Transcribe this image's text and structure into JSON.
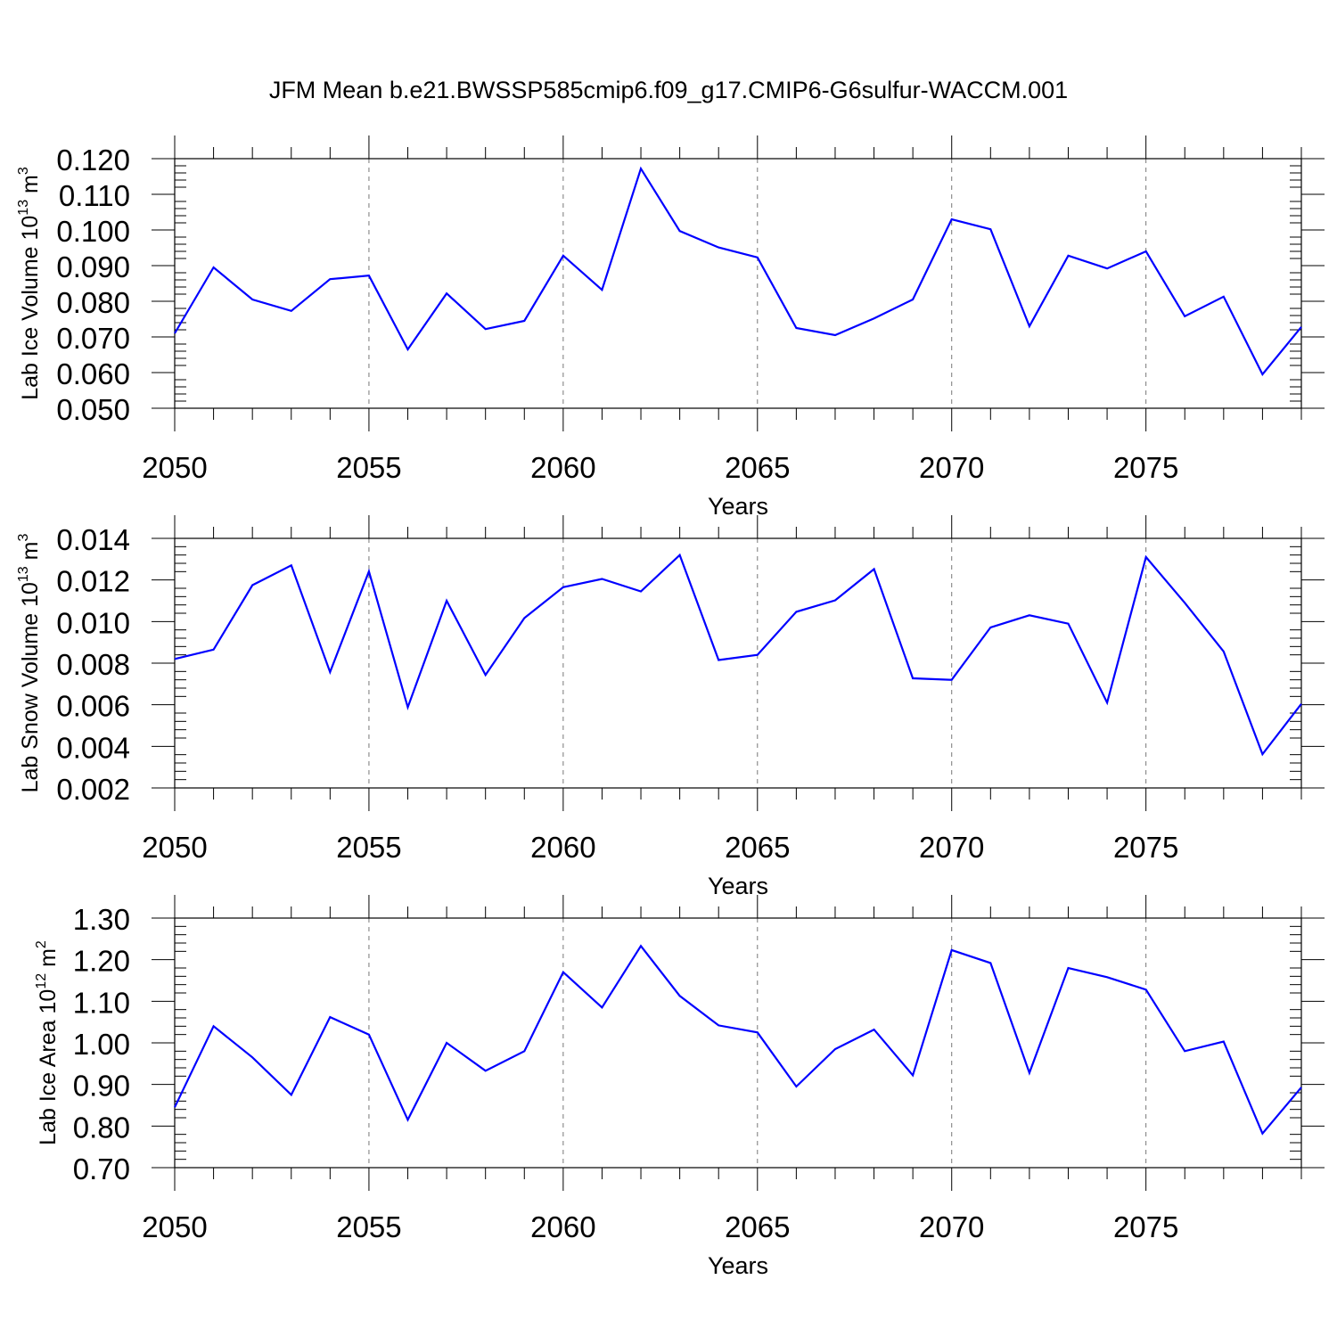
{
  "title": "JFM Mean b.e21.BWSSP585cmip6.f09_g17.CMIP6-G6sulfur-WACCM.001",
  "chart_data": [
    {
      "type": "line",
      "ylabel": "Lab Ice Volume 10",
      "ylabel_exp": "13",
      "ylabel_unit": "m",
      "ylabel_unit_exp": "3",
      "xlabel": "Years",
      "xlim": [
        2050,
        2079
      ],
      "ylim": [
        0.05,
        0.12
      ],
      "yticks": [
        "0.050",
        "0.060",
        "0.070",
        "0.080",
        "0.090",
        "0.100",
        "0.110",
        "0.120"
      ],
      "xticks": [
        "2050",
        "2055",
        "2060",
        "2065",
        "2070",
        "2075"
      ],
      "x": [
        2050,
        2051,
        2052,
        2053,
        2054,
        2055,
        2056,
        2057,
        2058,
        2059,
        2060,
        2061,
        2062,
        2063,
        2064,
        2065,
        2066,
        2067,
        2068,
        2069,
        2070,
        2071,
        2072,
        2073,
        2074,
        2075,
        2076,
        2077,
        2078,
        2079
      ],
      "values": [
        0.071,
        0.0895,
        0.0805,
        0.0773,
        0.0862,
        0.0872,
        0.0665,
        0.0822,
        0.0722,
        0.0745,
        0.0928,
        0.0832,
        0.1172,
        0.0997,
        0.0951,
        0.0923,
        0.0725,
        0.0705,
        0.0752,
        0.0805,
        0.103,
        0.1002,
        0.073,
        0.0928,
        0.0892,
        0.094,
        0.0758,
        0.0813,
        0.0595,
        0.0728
      ],
      "color": "#0000ff",
      "grid": "dashed vertical"
    },
    {
      "type": "line",
      "ylabel": "Lab Snow Volume 10",
      "ylabel_exp": "13",
      "ylabel_unit": "m",
      "ylabel_unit_exp": "3",
      "xlabel": "Years",
      "xlim": [
        2050,
        2079
      ],
      "ylim": [
        0.002,
        0.014
      ],
      "yticks": [
        "0.002",
        "0.004",
        "0.006",
        "0.008",
        "0.010",
        "0.012",
        "0.014"
      ],
      "xticks": [
        "2050",
        "2055",
        "2060",
        "2065",
        "2070",
        "2075"
      ],
      "x": [
        2050,
        2051,
        2052,
        2053,
        2054,
        2055,
        2056,
        2057,
        2058,
        2059,
        2060,
        2061,
        2062,
        2063,
        2064,
        2065,
        2066,
        2067,
        2068,
        2069,
        2070,
        2071,
        2072,
        2073,
        2074,
        2075,
        2076,
        2077,
        2078,
        2079
      ],
      "values": [
        0.0082,
        0.00865,
        0.01175,
        0.0127,
        0.00757,
        0.01241,
        0.00588,
        0.011,
        0.00743,
        0.01017,
        0.01165,
        0.01205,
        0.01145,
        0.0132,
        0.00815,
        0.0084,
        0.01047,
        0.01102,
        0.01252,
        0.00727,
        0.0072,
        0.00972,
        0.0103,
        0.0099,
        0.0061,
        0.0131,
        0.0109,
        0.00856,
        0.00362,
        0.00604
      ],
      "color": "#0000ff",
      "grid": "dashed vertical"
    },
    {
      "type": "line",
      "ylabel": "Lab Ice Area 10",
      "ylabel_exp": "12",
      "ylabel_unit": "m",
      "ylabel_unit_exp": "2",
      "xlabel": "Years",
      "xlim": [
        2050,
        2079
      ],
      "ylim": [
        0.7,
        1.3
      ],
      "yticks": [
        "0.70",
        "0.80",
        "0.90",
        "1.00",
        "1.10",
        "1.20",
        "1.30"
      ],
      "xticks": [
        "2050",
        "2055",
        "2060",
        "2065",
        "2070",
        "2075"
      ],
      "x": [
        2050,
        2051,
        2052,
        2053,
        2054,
        2055,
        2056,
        2057,
        2058,
        2059,
        2060,
        2061,
        2062,
        2063,
        2064,
        2065,
        2066,
        2067,
        2068,
        2069,
        2070,
        2071,
        2072,
        2073,
        2074,
        2075,
        2076,
        2077,
        2078,
        2079
      ],
      "values": [
        0.845,
        1.04,
        0.965,
        0.875,
        1.062,
        1.02,
        0.815,
        1.0,
        0.933,
        0.98,
        1.17,
        1.085,
        1.233,
        1.113,
        1.042,
        1.025,
        0.895,
        0.985,
        1.032,
        0.922,
        1.223,
        1.192,
        0.928,
        1.18,
        1.158,
        1.128,
        0.98,
        1.003,
        0.782,
        0.893
      ],
      "color": "#0000ff",
      "grid": "dashed vertical"
    }
  ]
}
